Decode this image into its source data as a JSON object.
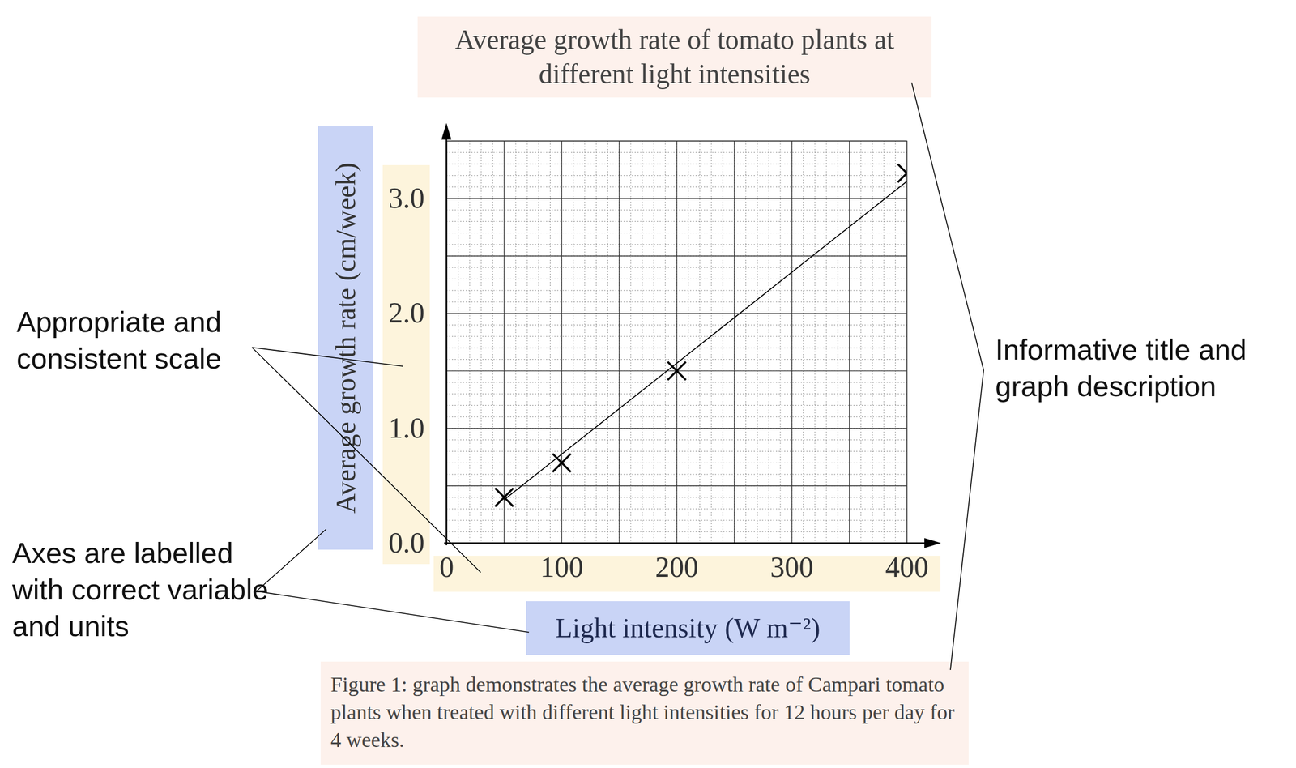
{
  "chart_data": {
    "type": "scatter",
    "title": "Average growth rate of tomato plants at different light intensities",
    "caption": "Figure 1: graph demonstrates the average growth rate of Campari tomato plants when treated with different light intensities for 12 hours per day for 4 weeks.",
    "x_label": "Light intensity (W m⁻²)",
    "y_label": "Average growth rate (cm/week)",
    "series": [
      {
        "type": "scatter",
        "marker": "x",
        "color": "#000000",
        "x": [
          50,
          100,
          200,
          400
        ],
        "values": [
          0.4,
          0.7,
          1.5,
          3.22
        ]
      },
      {
        "type": "line",
        "line_style": "solid",
        "color": "#000000",
        "x": [
          50,
          400
        ],
        "values": [
          0.38,
          3.15
        ]
      }
    ],
    "xlim": [
      0,
      400
    ],
    "xticks": [
      0,
      100,
      200,
      300,
      400
    ],
    "ylim": [
      0,
      3.5
    ],
    "yticks": [
      {
        "value": 0,
        "label": "0.0"
      },
      {
        "value": 1,
        "label": "1.0"
      },
      {
        "value": 2,
        "label": "2.0"
      },
      {
        "value": 3,
        "label": "3.0"
      }
    ],
    "grid": true,
    "annotations": [
      "Appropriate and consistent scale",
      "Axes are labelled with correct variable and units",
      "Informative title and graph description"
    ]
  }
}
